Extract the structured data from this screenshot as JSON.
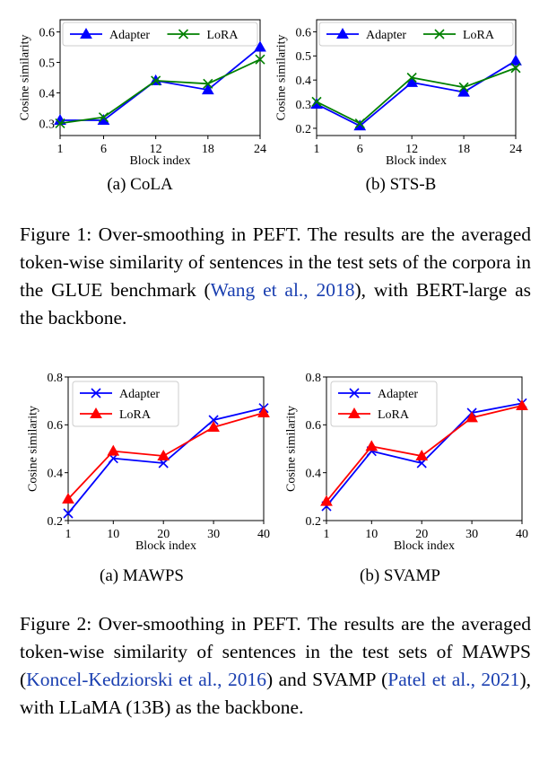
{
  "chart_data": [
    {
      "type": "line",
      "title": "",
      "xlabel": "Block index",
      "ylabel": "Cosine similarity",
      "categories": [
        "1",
        "6",
        "12",
        "18",
        "24"
      ],
      "x": [
        1,
        6,
        12,
        18,
        24
      ],
      "xlim": [
        1,
        24
      ],
      "ylim": [
        0.26,
        0.64
      ],
      "yticks": [
        "0.3",
        "0.4",
        "0.5",
        "0.6"
      ],
      "legend_position": "top",
      "grid": false,
      "series": [
        {
          "name": "Adapter",
          "values": [
            0.31,
            0.31,
            0.44,
            0.41,
            0.55
          ],
          "color": "#0000ff",
          "marker": "triangle"
        },
        {
          "name": "LoRA",
          "values": [
            0.3,
            0.32,
            0.44,
            0.43,
            0.51
          ],
          "color": "#008000",
          "marker": "x"
        }
      ]
    },
    {
      "type": "line",
      "title": "",
      "xlabel": "Block index",
      "ylabel": "Cosine similarity",
      "categories": [
        "1",
        "6",
        "12",
        "18",
        "24"
      ],
      "x": [
        1,
        6,
        12,
        18,
        24
      ],
      "xlim": [
        1,
        24
      ],
      "ylim": [
        0.17,
        0.65
      ],
      "yticks": [
        "0.2",
        "0.3",
        "0.4",
        "0.5",
        "0.6"
      ],
      "legend_position": "top",
      "grid": false,
      "series": [
        {
          "name": "Adapter",
          "values": [
            0.3,
            0.21,
            0.39,
            0.35,
            0.48
          ],
          "color": "#0000ff",
          "marker": "triangle"
        },
        {
          "name": "LoRA",
          "values": [
            0.31,
            0.22,
            0.41,
            0.37,
            0.45
          ],
          "color": "#008000",
          "marker": "x"
        }
      ]
    },
    {
      "type": "line",
      "title": "",
      "xlabel": "Block index",
      "ylabel": "Cosine similarity",
      "categories": [
        "1",
        "10",
        "20",
        "30",
        "40"
      ],
      "x": [
        1,
        10,
        20,
        30,
        40
      ],
      "xlim": [
        1,
        40
      ],
      "ylim": [
        0.2,
        0.8
      ],
      "yticks": [
        "0.2",
        "0.4",
        "0.6",
        "0.8"
      ],
      "legend_position": "top-left",
      "grid": false,
      "series": [
        {
          "name": "Adapter",
          "values": [
            0.23,
            0.46,
            0.44,
            0.62,
            0.67
          ],
          "color": "#0000ff",
          "marker": "x"
        },
        {
          "name": "LoRA",
          "values": [
            0.29,
            0.49,
            0.47,
            0.59,
            0.65
          ],
          "color": "#ff0000",
          "marker": "triangle"
        }
      ]
    },
    {
      "type": "line",
      "title": "",
      "xlabel": "Block index",
      "ylabel": "Cosine similarity",
      "categories": [
        "1",
        "10",
        "20",
        "30",
        "40"
      ],
      "x": [
        1,
        10,
        20,
        30,
        40
      ],
      "xlim": [
        1,
        40
      ],
      "ylim": [
        0.2,
        0.8
      ],
      "yticks": [
        "0.2",
        "0.4",
        "0.6",
        "0.8"
      ],
      "legend_position": "top-left",
      "grid": false,
      "series": [
        {
          "name": "Adapter",
          "values": [
            0.26,
            0.49,
            0.44,
            0.65,
            0.69
          ],
          "color": "#0000ff",
          "marker": "x"
        },
        {
          "name": "LoRA",
          "values": [
            0.28,
            0.51,
            0.47,
            0.63,
            0.68
          ],
          "color": "#ff0000",
          "marker": "triangle"
        }
      ]
    }
  ],
  "figure1": {
    "subcaption_a": "(a)  CoLA",
    "subcaption_b": "(b)  STS-B",
    "caption": {
      "lead": "Figure 1: Over-smoothing in PEFT. The results are the averaged token-wise similarity of sentences in the test sets of the corpora in the GLUE benchmark (",
      "cite1": "Wang et al., 2018",
      "tail": "), with BERT-large as the backbone."
    }
  },
  "figure2": {
    "subcaption_a": "(a)  MAWPS",
    "subcaption_b": "(b)  SVAMP",
    "caption": {
      "lead": "Figure 2: Over-smoothing in PEFT. The results are the averaged token-wise similarity of sentences in the test sets of MAWPS (",
      "cite1": "Koncel-Kedziorski et al., 2016",
      "mid": ") and SVAMP (",
      "cite2": "Patel et al., 2021",
      "tail": "), with LLaMA (13B) as the backbone."
    }
  }
}
